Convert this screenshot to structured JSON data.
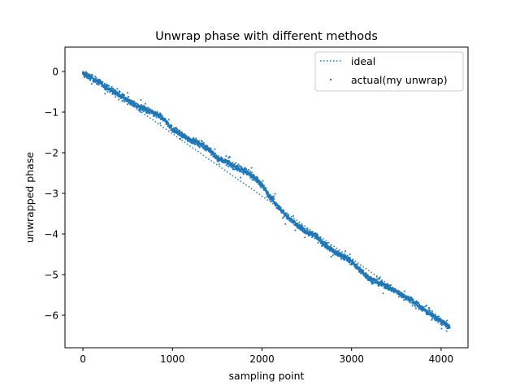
{
  "chart_data": {
    "type": "scatter",
    "title": "Unwrap phase with different methods",
    "xlabel": "sampling point",
    "ylabel": "unwrapped phase",
    "xlim": [
      -200,
      4300
    ],
    "ylim": [
      -6.8,
      0.6
    ],
    "x_ticks": [
      0,
      1000,
      2000,
      3000,
      4000
    ],
    "x_tick_labels": [
      "0",
      "1000",
      "2000",
      "3000",
      "4000"
    ],
    "y_ticks": [
      0,
      -1,
      -2,
      -3,
      -4,
      -5,
      -6
    ],
    "y_tick_labels": [
      "0",
      "−1",
      "−2",
      "−3",
      "−4",
      "−5",
      "−6"
    ],
    "grid": false,
    "legend_position": "top-right",
    "color": "#1f77b4",
    "series": [
      {
        "name": "ideal",
        "style": "dotted-line",
        "x": [
          0,
          100,
          200,
          300,
          400,
          500,
          600,
          700,
          800,
          900,
          1000,
          1100,
          1200,
          1300,
          1400,
          1500,
          1600,
          1700,
          1800,
          1900,
          2000,
          2100,
          2200,
          2300,
          2400,
          2500,
          2600,
          2700,
          2800,
          2900,
          3000,
          3100,
          3200,
          3300,
          3400,
          3500,
          3600,
          3700,
          3800,
          3900,
          4000,
          4096
        ],
        "y": [
          0.0,
          -0.15,
          -0.3,
          -0.46,
          -0.61,
          -0.76,
          -0.92,
          -1.07,
          -1.22,
          -1.38,
          -1.53,
          -1.69,
          -1.84,
          -1.99,
          -2.15,
          -2.3,
          -2.45,
          -2.61,
          -2.76,
          -2.91,
          -3.07,
          -3.22,
          -3.38,
          -3.53,
          -3.68,
          -3.84,
          -3.99,
          -4.14,
          -4.3,
          -4.45,
          -4.6,
          -4.76,
          -4.91,
          -5.07,
          -5.22,
          -5.37,
          -5.53,
          -5.68,
          -5.83,
          -5.99,
          -6.14,
          -6.28
        ]
      },
      {
        "name": "actual(my unwrap)",
        "style": "markers",
        "x": [
          0,
          100,
          200,
          300,
          400,
          500,
          600,
          700,
          800,
          900,
          1000,
          1100,
          1200,
          1300,
          1400,
          1500,
          1600,
          1700,
          1800,
          1900,
          2000,
          2100,
          2200,
          2300,
          2400,
          2500,
          2600,
          2700,
          2800,
          2900,
          3000,
          3100,
          3200,
          3300,
          3400,
          3500,
          3600,
          3700,
          3800,
          3900,
          4000,
          4096
        ],
        "y": [
          -0.05,
          -0.16,
          -0.29,
          -0.44,
          -0.57,
          -0.7,
          -0.85,
          -0.93,
          -1.04,
          -1.16,
          -1.42,
          -1.56,
          -1.68,
          -1.78,
          -1.9,
          -2.14,
          -2.22,
          -2.35,
          -2.45,
          -2.58,
          -2.8,
          -3.1,
          -3.38,
          -3.62,
          -3.8,
          -3.95,
          -4.05,
          -4.25,
          -4.43,
          -4.54,
          -4.68,
          -4.9,
          -5.1,
          -5.2,
          -5.3,
          -5.42,
          -5.55,
          -5.68,
          -5.85,
          -6.0,
          -6.15,
          -6.3
        ]
      }
    ]
  }
}
